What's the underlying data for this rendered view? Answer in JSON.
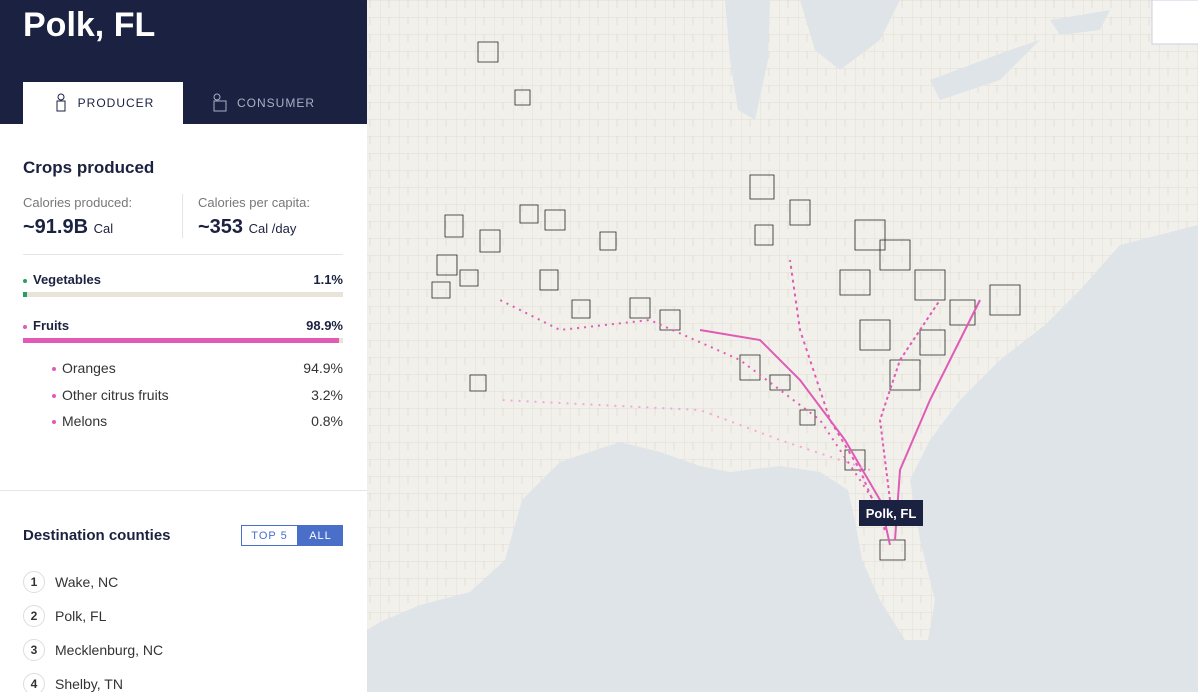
{
  "header": {
    "title": "Polk, FL"
  },
  "tabs": [
    "PRODUCER",
    "CONSUMER"
  ],
  "crops": {
    "title": "Crops produced",
    "stats": [
      {
        "label": "Calories produced:",
        "value": "~91.9B",
        "unit": "Cal"
      },
      {
        "label": "Calories per capita:",
        "value": "~353",
        "unit": "Cal /day"
      }
    ],
    "groups": [
      {
        "name": "Vegetables",
        "value": 1.1,
        "value_label": "1.1%",
        "color": "#2a9d5c"
      },
      {
        "name": "Fruits",
        "value": 98.9,
        "value_label": "98.9%",
        "color": "#e05bb5"
      }
    ],
    "items": [
      {
        "name": "Oranges",
        "value": "94.9%"
      },
      {
        "name": "Other citrus fruits",
        "value": "3.2%"
      },
      {
        "name": "Melons",
        "value": "0.8%"
      }
    ]
  },
  "destinations": {
    "title": "Destination counties",
    "toggle": [
      "TOP 5",
      "ALL"
    ],
    "items": [
      {
        "rank": 1,
        "name": "Wake, NC"
      },
      {
        "rank": 2,
        "name": "Polk, FL"
      },
      {
        "rank": 3,
        "name": "Mecklenburg, NC"
      },
      {
        "rank": 4,
        "name": "Shelby, TN"
      }
    ]
  },
  "map": {
    "label": "Polk, FL"
  }
}
